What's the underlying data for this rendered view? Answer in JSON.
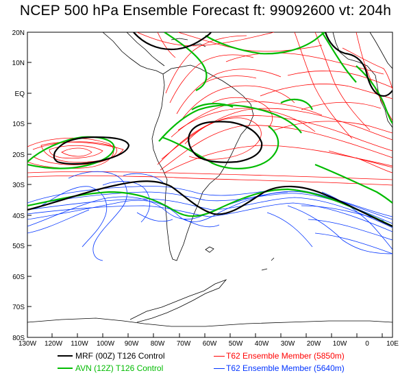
{
  "title": "NCEP 500 hPa Ensemble Forecast  ft: 99092600 vt: 204h",
  "lat_labels": [
    "20N",
    "10N",
    "EQ",
    "10S",
    "20S",
    "30S",
    "40S",
    "50S",
    "60S",
    "70S",
    "80S"
  ],
  "lon_labels": [
    "130W",
    "120W",
    "110W",
    "100W",
    "90W",
    "80W",
    "70W",
    "60W",
    "50W",
    "40W",
    "30W",
    "20W",
    "10W",
    "0",
    "10E"
  ],
  "legend": [
    {
      "label": "MRF (00Z) T126 Control",
      "color": "#000000"
    },
    {
      "label": "AVN (12Z) T126 Control",
      "color": "#00bb00"
    },
    {
      "label": "T62 Ensemble Member (5850m)",
      "color": "#ff0000"
    },
    {
      "label": "T62 Ensemble Member (5640m)",
      "color": "#0033ff"
    }
  ],
  "colors": {
    "mrf": "#000000",
    "avn": "#00bb00",
    "t62_5850": "#ff0000",
    "t62_5640": "#0033ff"
  }
}
